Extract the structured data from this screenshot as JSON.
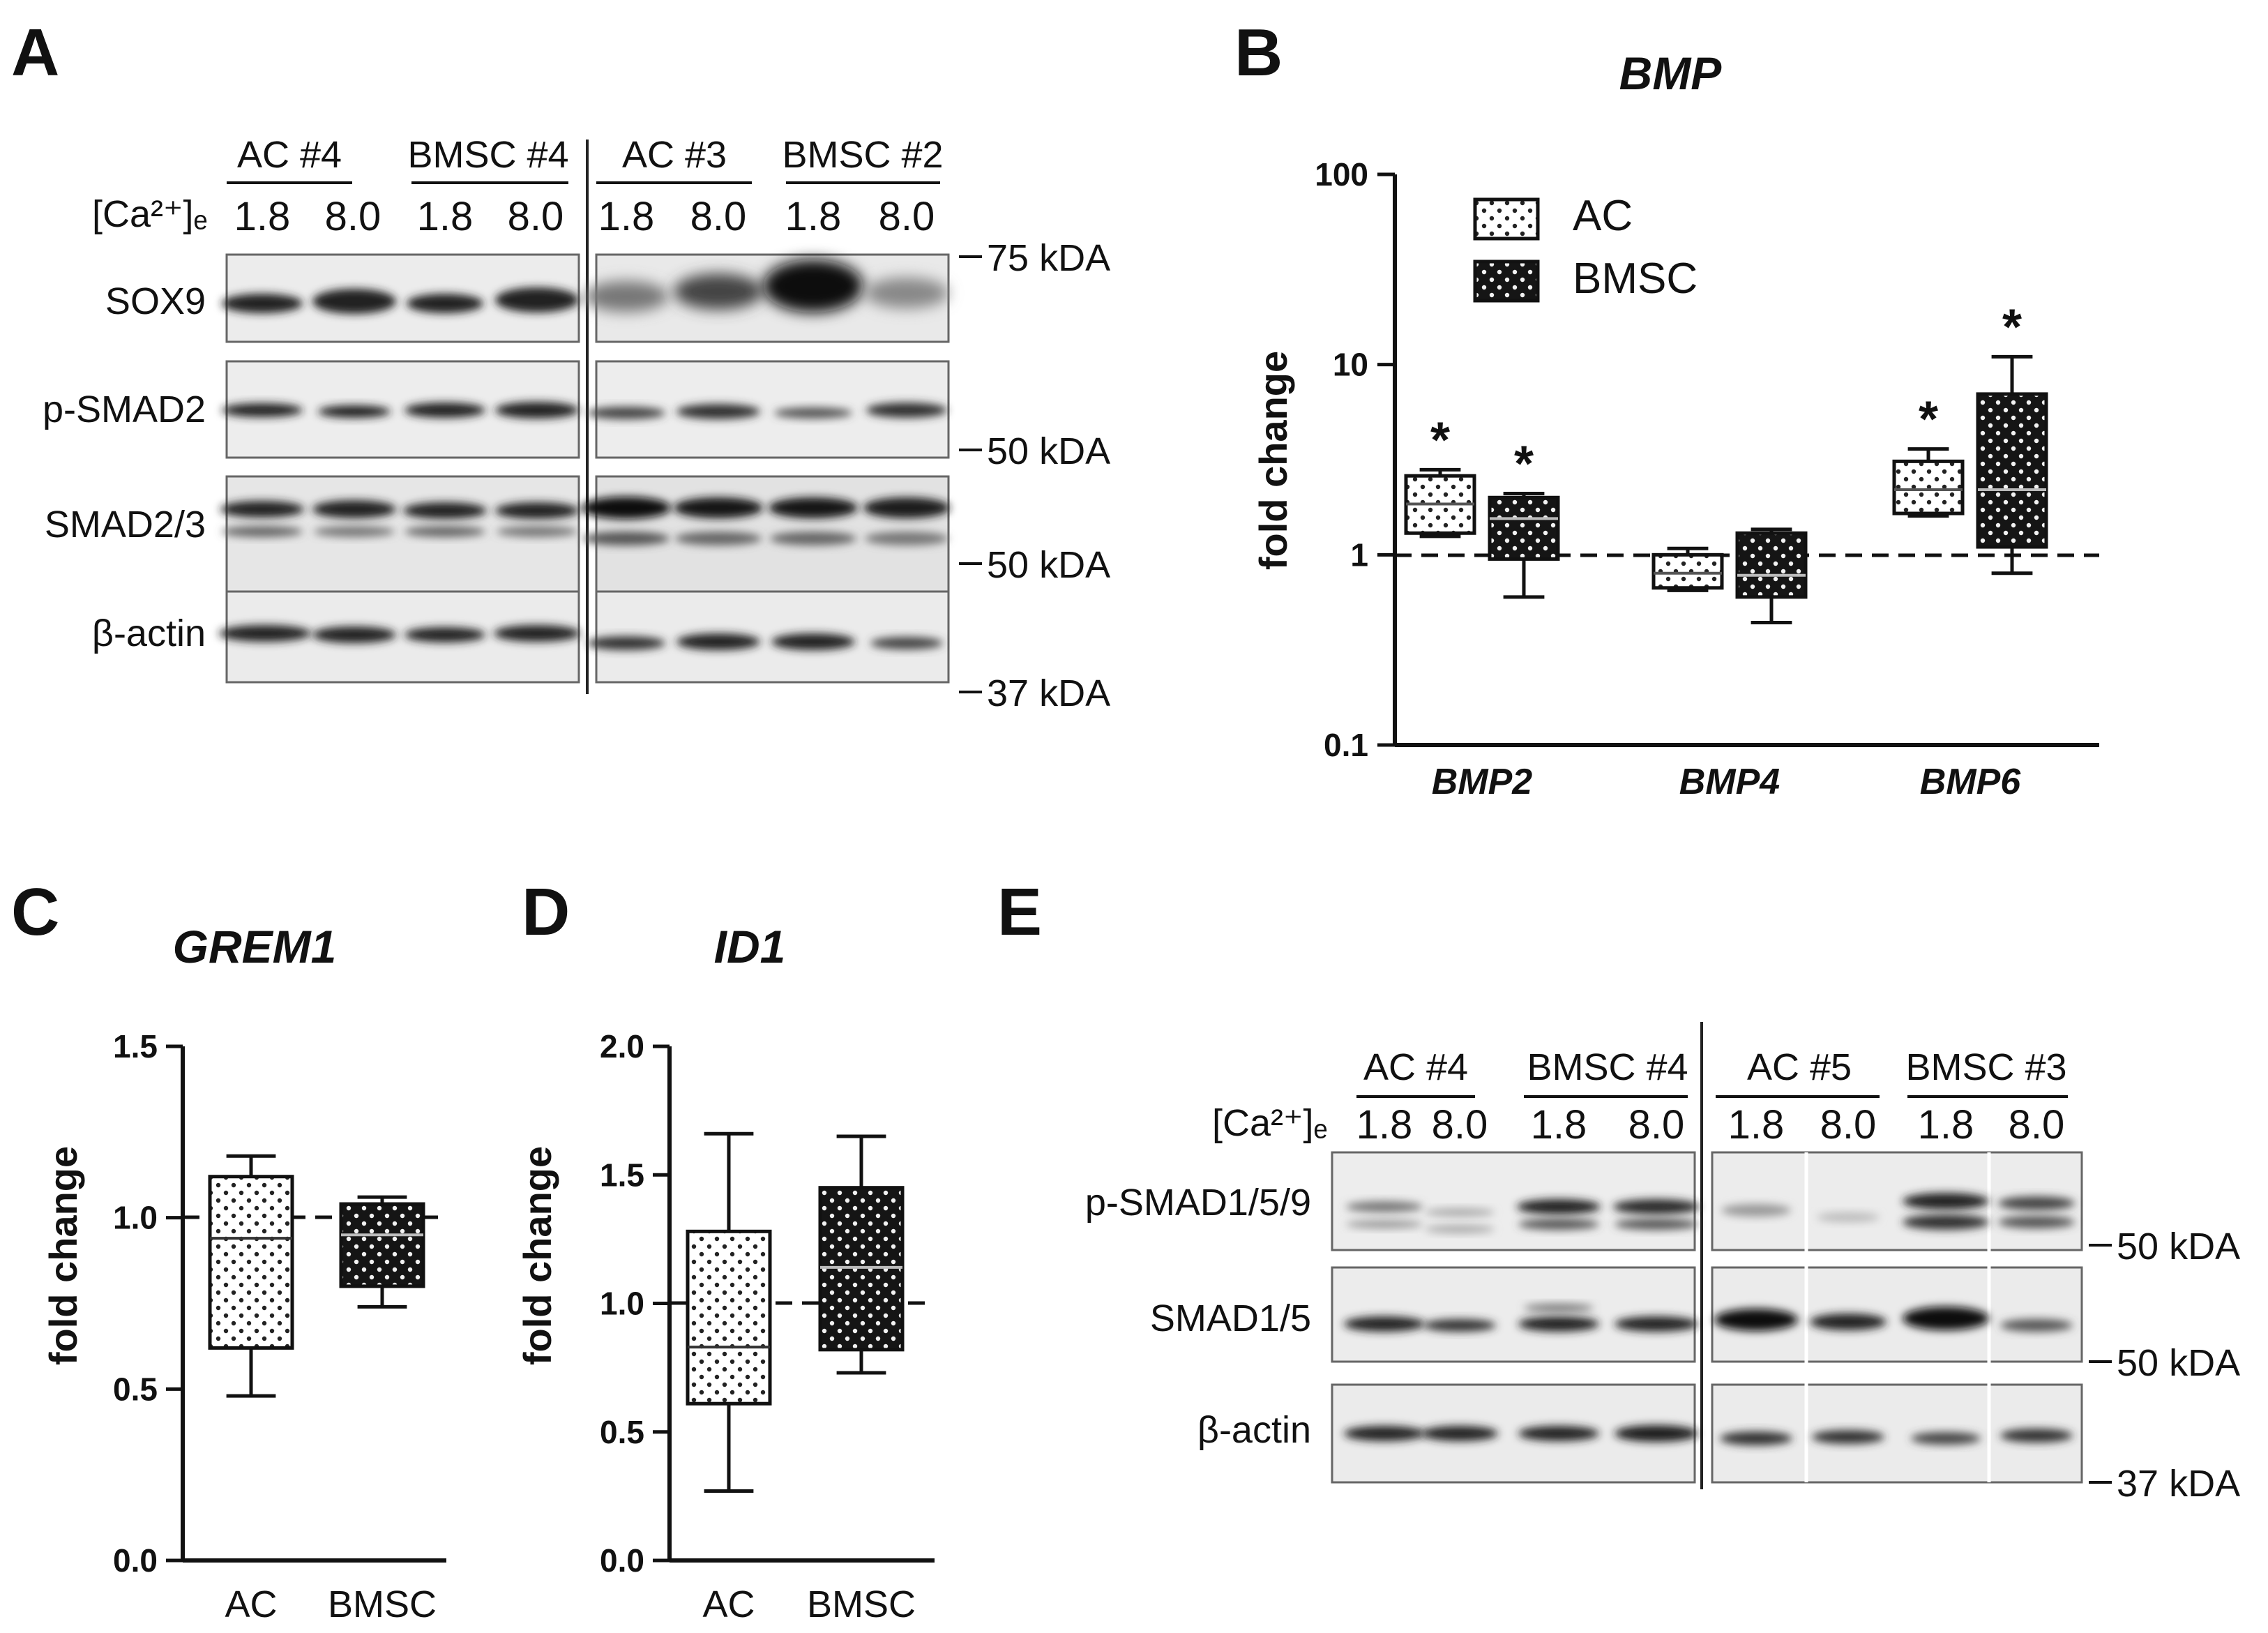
{
  "panel_labels": [
    "A",
    "B",
    "C",
    "D",
    "E"
  ],
  "colors": {
    "ac_fill": "#ffffff",
    "bmsc_fill": "#1a1a1a",
    "blot_bg": "#ececec",
    "band": "#222222"
  },
  "blot_A": {
    "groups": [
      "AC #4",
      "BMSC #4",
      "AC #3",
      "BMSC #2"
    ],
    "condition_label": "[Ca²⁺]ₑ",
    "conditions": [
      "1.8",
      "8.0",
      "1.8",
      "8.0",
      "1.8",
      "8.0",
      "1.8",
      "8.0"
    ],
    "rows": [
      "SOX9",
      "p-SMAD2",
      "SMAD2/3",
      "β-actin"
    ],
    "markers": [
      "75 kDA",
      "50 kDA",
      "50 kDA",
      "37 kDA"
    ]
  },
  "blot_E": {
    "groups": [
      "AC #4",
      "BMSC #4",
      "AC #5",
      "BMSC #3"
    ],
    "condition_label": "[Ca²⁺]ₑ",
    "conditions": [
      "1.8",
      "8.0",
      "1.8",
      "8.0",
      "1.8",
      "8.0",
      "1.8",
      "8.0"
    ],
    "rows": [
      "p-SMAD1/5/9",
      "SMAD1/5",
      "β-actin"
    ],
    "markers": [
      "50 kDA",
      "50 kDA",
      "37 kDA"
    ]
  },
  "chart_data": [
    {
      "type": "box",
      "title": "BMP",
      "xlabel": "",
      "ylabel": "fold change",
      "yscale": "log",
      "ylim": [
        0.1,
        100
      ],
      "yticks": [
        "100",
        "10",
        "1",
        "0.1"
      ],
      "categories": [
        "BMP2",
        "BMP4",
        "BMP6"
      ],
      "reference_line": 1,
      "legend": {
        "position": "top-left",
        "entries": [
          "AC",
          "BMSC"
        ]
      },
      "series": [
        {
          "name": "AC",
          "boxes": [
            {
              "min": 1.25,
              "q1": 1.3,
              "median": 1.85,
              "q3": 2.6,
              "max": 2.8,
              "star": true
            },
            {
              "min": 0.65,
              "q1": 0.67,
              "median": 0.8,
              "q3": 1.0,
              "max": 1.08,
              "star": false
            },
            {
              "min": 1.6,
              "q1": 1.65,
              "median": 2.2,
              "q3": 3.1,
              "max": 3.6,
              "star": true
            }
          ]
        },
        {
          "name": "BMSC",
          "boxes": [
            {
              "min": 0.6,
              "q1": 0.95,
              "median": 1.55,
              "q3": 2.0,
              "max": 2.1,
              "star": true
            },
            {
              "min": 0.44,
              "q1": 0.6,
              "median": 0.78,
              "q3": 1.3,
              "max": 1.36,
              "star": false
            },
            {
              "min": 0.8,
              "q1": 1.1,
              "median": 2.2,
              "q3": 7.0,
              "max": 11.0,
              "star": true
            }
          ]
        }
      ],
      "annotations": [
        "*"
      ]
    },
    {
      "type": "box",
      "title": "GREM1",
      "xlabel": "",
      "ylabel": "fold change",
      "ylim": [
        0,
        1.5
      ],
      "yticks": [
        "1.5",
        "1.0",
        "0.5",
        "0.0"
      ],
      "categories": [
        "AC",
        "BMSC"
      ],
      "reference_line": 1,
      "boxes": [
        {
          "min": 0.48,
          "q1": 0.62,
          "median": 0.94,
          "q3": 1.12,
          "max": 1.18
        },
        {
          "min": 0.74,
          "q1": 0.8,
          "median": 0.95,
          "q3": 1.04,
          "max": 1.06
        }
      ]
    },
    {
      "type": "box",
      "title": "ID1",
      "xlabel": "",
      "ylabel": "fold change",
      "ylim": [
        0,
        2
      ],
      "yticks": [
        "2.0",
        "1.5",
        "1.0",
        "0.5",
        "0.0"
      ],
      "categories": [
        "AC",
        "BMSC"
      ],
      "reference_line": 1,
      "boxes": [
        {
          "min": 0.27,
          "q1": 0.61,
          "median": 0.83,
          "q3": 1.28,
          "max": 1.66
        },
        {
          "min": 0.73,
          "q1": 0.82,
          "median": 1.14,
          "q3": 1.45,
          "max": 1.65
        }
      ]
    }
  ]
}
